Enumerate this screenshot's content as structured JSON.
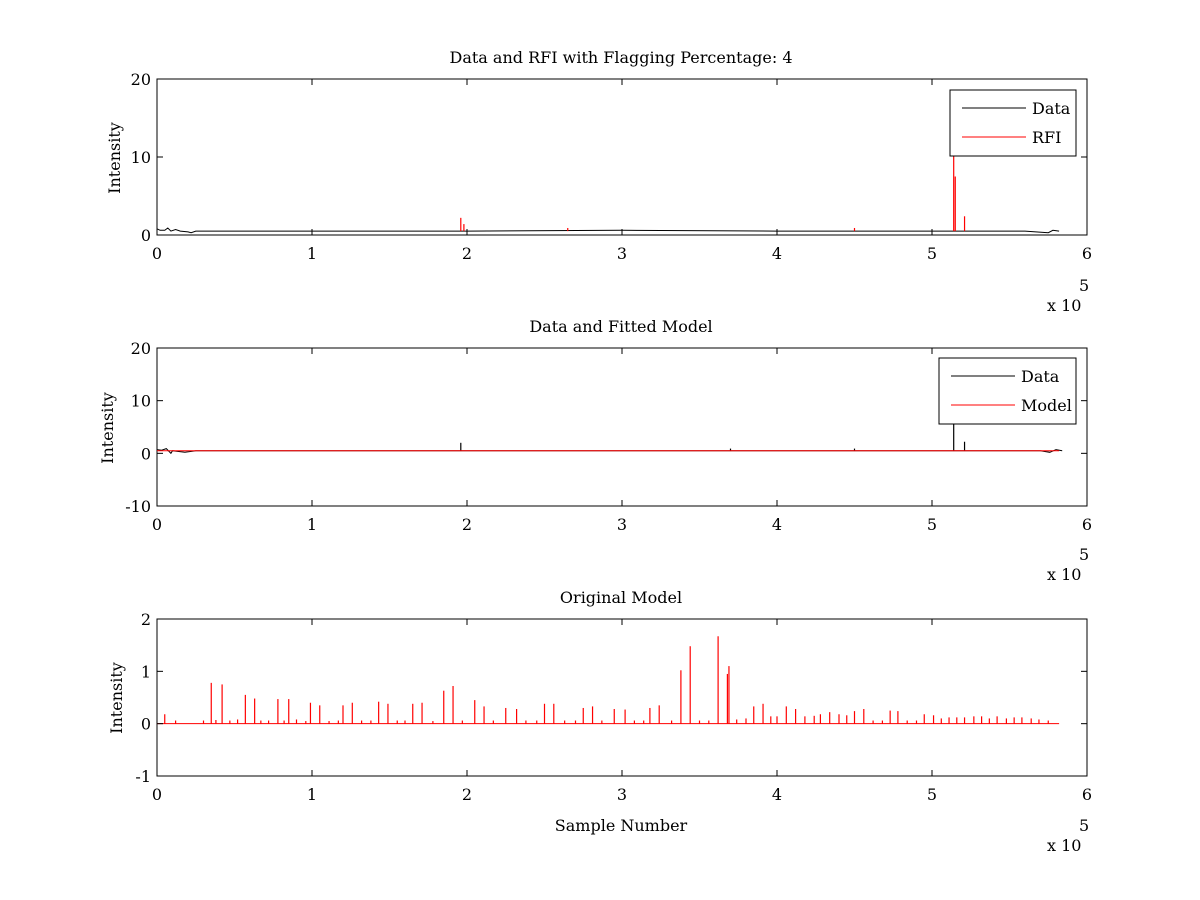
{
  "chart_data": [
    {
      "type": "line",
      "title": "Data and RFI with Flagging Percentage: 4",
      "xlabel": "",
      "ylabel": "Intensity",
      "xlim": [
        0,
        600000
      ],
      "ylim": [
        0,
        20
      ],
      "x_ticks": [
        "0",
        "1",
        "2",
        "3",
        "4",
        "5",
        "6"
      ],
      "x_tick_values": [
        0,
        100000,
        200000,
        300000,
        400000,
        500000,
        600000
      ],
      "y_ticks": [
        "0",
        "10",
        "20"
      ],
      "y_tick_values": [
        0,
        10,
        20
      ],
      "x_exponent": {
        "base": "x 10",
        "power": "5"
      },
      "legend": {
        "position": "top-right",
        "entries": [
          "Data",
          "RFI"
        ]
      },
      "series": [
        {
          "name": "Data",
          "color": "#000000",
          "baseline": 0.5,
          "x": [
            0,
            2000,
            5000,
            7000,
            9000,
            12000,
            15000,
            20000,
            22000,
            25000,
            60000,
            120000,
            200000,
            300000,
            400000,
            480000,
            515000,
            560000,
            575000,
            578000,
            582000
          ],
          "y": [
            0.8,
            0.6,
            0.6,
            0.9,
            0.5,
            0.7,
            0.5,
            0.4,
            0.3,
            0.5,
            0.5,
            0.5,
            0.5,
            0.6,
            0.5,
            0.5,
            0.5,
            0.5,
            0.3,
            0.6,
            0.5
          ]
        },
        {
          "name": "RFI",
          "color": "#ff0000",
          "baseline": 0.5,
          "spikes": [
            {
              "x": 196000,
              "y": 2.2
            },
            {
              "x": 198000,
              "y": 1.4
            },
            {
              "x": 265000,
              "y": 0.9
            },
            {
              "x": 450000,
              "y": 0.9
            },
            {
              "x": 514000,
              "y": 10.5
            },
            {
              "x": 515000,
              "y": 7.5
            },
            {
              "x": 521000,
              "y": 2.4
            }
          ]
        }
      ]
    },
    {
      "type": "line",
      "title": "Data and Fitted Model",
      "xlabel": "",
      "ylabel": "Intensity",
      "xlim": [
        0,
        600000
      ],
      "ylim": [
        -10,
        20
      ],
      "x_ticks": [
        "0",
        "1",
        "2",
        "3",
        "4",
        "5",
        "6"
      ],
      "x_tick_values": [
        0,
        100000,
        200000,
        300000,
        400000,
        500000,
        600000
      ],
      "y_ticks": [
        "-10",
        "0",
        "10",
        "20"
      ],
      "y_tick_values": [
        -10,
        0,
        10,
        20
      ],
      "x_exponent": {
        "base": "x 10",
        "power": "5"
      },
      "legend": {
        "position": "top-right",
        "entries": [
          "Data",
          "Model"
        ]
      },
      "series": [
        {
          "name": "Data",
          "color": "#000000",
          "baseline": 0.5,
          "x": [
            0,
            3000,
            6000,
            9000,
            10000,
            18000,
            25000,
            60000,
            200000,
            400000,
            570000,
            576000,
            580000,
            584000
          ],
          "y": [
            0.7,
            0.6,
            0.9,
            0.0,
            0.5,
            0.2,
            0.5,
            0.5,
            0.5,
            0.5,
            0.5,
            0.2,
            0.7,
            0.5
          ],
          "spikes": [
            {
              "x": 196000,
              "y": 2.0
            },
            {
              "x": 370000,
              "y": 0.9
            },
            {
              "x": 450000,
              "y": 0.9
            },
            {
              "x": 514000,
              "y": 5.5
            },
            {
              "x": 521000,
              "y": 2.2
            }
          ]
        },
        {
          "name": "Model",
          "color": "#ff0000",
          "x": [
            0,
            582000
          ],
          "y": [
            0.5,
            0.5
          ]
        }
      ]
    },
    {
      "type": "line",
      "title": "Original Model",
      "xlabel": "Sample Number",
      "ylabel": "Intensity",
      "xlim": [
        0,
        600000
      ],
      "ylim": [
        -1,
        2
      ],
      "x_ticks": [
        "0",
        "1",
        "2",
        "3",
        "4",
        "5",
        "6"
      ],
      "x_tick_values": [
        0,
        100000,
        200000,
        300000,
        400000,
        500000,
        600000
      ],
      "y_ticks": [
        "-1",
        "0",
        "1",
        "2"
      ],
      "y_tick_values": [
        -1,
        0,
        1,
        2
      ],
      "x_exponent": {
        "base": "x 10",
        "power": "5"
      },
      "series": [
        {
          "name": "",
          "color": "#ff0000",
          "baseline": 0,
          "xmax": 582000,
          "spikes": [
            {
              "x": 5000,
              "y": 0.18
            },
            {
              "x": 12000,
              "y": 0.06
            },
            {
              "x": 30000,
              "y": 0.06
            },
            {
              "x": 35000,
              "y": 0.78
            },
            {
              "x": 38000,
              "y": 0.07
            },
            {
              "x": 42000,
              "y": 0.75
            },
            {
              "x": 47000,
              "y": 0.06
            },
            {
              "x": 52000,
              "y": 0.08
            },
            {
              "x": 57000,
              "y": 0.55
            },
            {
              "x": 63000,
              "y": 0.48
            },
            {
              "x": 67000,
              "y": 0.06
            },
            {
              "x": 72000,
              "y": 0.06
            },
            {
              "x": 78000,
              "y": 0.47
            },
            {
              "x": 82000,
              "y": 0.06
            },
            {
              "x": 85000,
              "y": 0.47
            },
            {
              "x": 90000,
              "y": 0.08
            },
            {
              "x": 96000,
              "y": 0.05
            },
            {
              "x": 99000,
              "y": 0.4
            },
            {
              "x": 105000,
              "y": 0.35
            },
            {
              "x": 111000,
              "y": 0.05
            },
            {
              "x": 117000,
              "y": 0.06
            },
            {
              "x": 120000,
              "y": 0.35
            },
            {
              "x": 126000,
              "y": 0.4
            },
            {
              "x": 132000,
              "y": 0.06
            },
            {
              "x": 138000,
              "y": 0.06
            },
            {
              "x": 143000,
              "y": 0.42
            },
            {
              "x": 149000,
              "y": 0.38
            },
            {
              "x": 155000,
              "y": 0.06
            },
            {
              "x": 160000,
              "y": 0.06
            },
            {
              "x": 165000,
              "y": 0.38
            },
            {
              "x": 171000,
              "y": 0.4
            },
            {
              "x": 178000,
              "y": 0.05
            },
            {
              "x": 185000,
              "y": 0.63
            },
            {
              "x": 191000,
              "y": 0.72
            },
            {
              "x": 197000,
              "y": 0.06
            },
            {
              "x": 205000,
              "y": 0.45
            },
            {
              "x": 211000,
              "y": 0.33
            },
            {
              "x": 217000,
              "y": 0.06
            },
            {
              "x": 225000,
              "y": 0.3
            },
            {
              "x": 232000,
              "y": 0.28
            },
            {
              "x": 238000,
              "y": 0.06
            },
            {
              "x": 245000,
              "y": 0.06
            },
            {
              "x": 250000,
              "y": 0.38
            },
            {
              "x": 256000,
              "y": 0.38
            },
            {
              "x": 263000,
              "y": 0.06
            },
            {
              "x": 270000,
              "y": 0.06
            },
            {
              "x": 275000,
              "y": 0.3
            },
            {
              "x": 281000,
              "y": 0.33
            },
            {
              "x": 287000,
              "y": 0.06
            },
            {
              "x": 295000,
              "y": 0.28
            },
            {
              "x": 302000,
              "y": 0.27
            },
            {
              "x": 308000,
              "y": 0.06
            },
            {
              "x": 314000,
              "y": 0.06
            },
            {
              "x": 318000,
              "y": 0.3
            },
            {
              "x": 324000,
              "y": 0.35
            },
            {
              "x": 332000,
              "y": 0.06
            },
            {
              "x": 338000,
              "y": 1.02
            },
            {
              "x": 344000,
              "y": 1.48
            },
            {
              "x": 350000,
              "y": 0.06
            },
            {
              "x": 356000,
              "y": 0.06
            },
            {
              "x": 362000,
              "y": 1.67
            },
            {
              "x": 368000,
              "y": 0.95
            },
            {
              "x": 369000,
              "y": 1.1
            },
            {
              "x": 374000,
              "y": 0.08
            },
            {
              "x": 380000,
              "y": 0.1
            },
            {
              "x": 385000,
              "y": 0.33
            },
            {
              "x": 391000,
              "y": 0.38
            },
            {
              "x": 396000,
              "y": 0.14
            },
            {
              "x": 400000,
              "y": 0.14
            },
            {
              "x": 406000,
              "y": 0.33
            },
            {
              "x": 412000,
              "y": 0.28
            },
            {
              "x": 418000,
              "y": 0.14
            },
            {
              "x": 424000,
              "y": 0.15
            },
            {
              "x": 428000,
              "y": 0.18
            },
            {
              "x": 434000,
              "y": 0.22
            },
            {
              "x": 440000,
              "y": 0.18
            },
            {
              "x": 445000,
              "y": 0.16
            },
            {
              "x": 450000,
              "y": 0.24
            },
            {
              "x": 456000,
              "y": 0.28
            },
            {
              "x": 462000,
              "y": 0.06
            },
            {
              "x": 468000,
              "y": 0.06
            },
            {
              "x": 473000,
              "y": 0.25
            },
            {
              "x": 478000,
              "y": 0.24
            },
            {
              "x": 484000,
              "y": 0.06
            },
            {
              "x": 490000,
              "y": 0.06
            },
            {
              "x": 495000,
              "y": 0.18
            },
            {
              "x": 501000,
              "y": 0.16
            },
            {
              "x": 506000,
              "y": 0.1
            },
            {
              "x": 511000,
              "y": 0.12
            },
            {
              "x": 516000,
              "y": 0.12
            },
            {
              "x": 521000,
              "y": 0.12
            },
            {
              "x": 527000,
              "y": 0.14
            },
            {
              "x": 532000,
              "y": 0.14
            },
            {
              "x": 537000,
              "y": 0.1
            },
            {
              "x": 542000,
              "y": 0.14
            },
            {
              "x": 548000,
              "y": 0.1
            },
            {
              "x": 553000,
              "y": 0.12
            },
            {
              "x": 558000,
              "y": 0.12
            },
            {
              "x": 564000,
              "y": 0.1
            },
            {
              "x": 569000,
              "y": 0.08
            },
            {
              "x": 575000,
              "y": 0.06
            }
          ]
        }
      ]
    }
  ]
}
